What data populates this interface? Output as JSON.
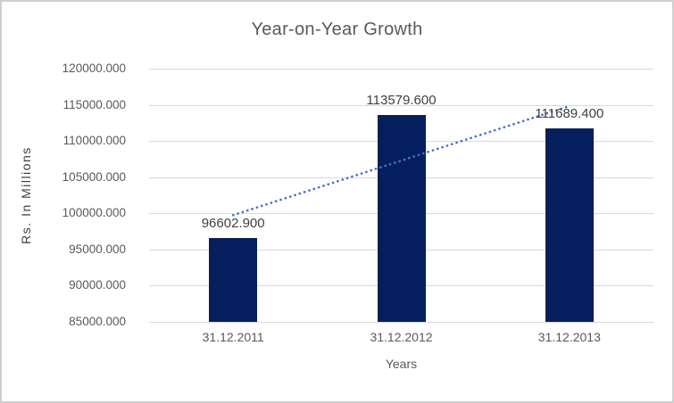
{
  "chart_data": {
    "type": "bar",
    "title": "Year-on-Year Growth",
    "xlabel": "Years",
    "ylabel": "Rs. In Millions",
    "categories": [
      "31.12.2011",
      "31.12.2012",
      "31.12.2013"
    ],
    "values": [
      96602.9,
      113579.6,
      111689.4
    ],
    "data_labels": [
      "96602.900",
      "113579.600",
      "111689.400"
    ],
    "ylim": [
      85000,
      120000
    ],
    "ytick_step": 5000,
    "ytick_labels": [
      "120000.000",
      "115000.000",
      "110000.000",
      "105000.000",
      "100000.000",
      "95000.000",
      "90000.000",
      "85000.000"
    ],
    "grid": true,
    "legend_position": "none",
    "trendline": {
      "type": "linear",
      "style": "dotted"
    },
    "colors": {
      "bar": "#051f5e",
      "trendline": "#4472c4",
      "gridline": "#d9d9d9",
      "title_text": "#595959",
      "tick_text": "#595959",
      "data_label_text": "#404040",
      "axis_title_text": "#404040",
      "frame_border": "#cfcfcf",
      "background": "#ffffff"
    }
  }
}
